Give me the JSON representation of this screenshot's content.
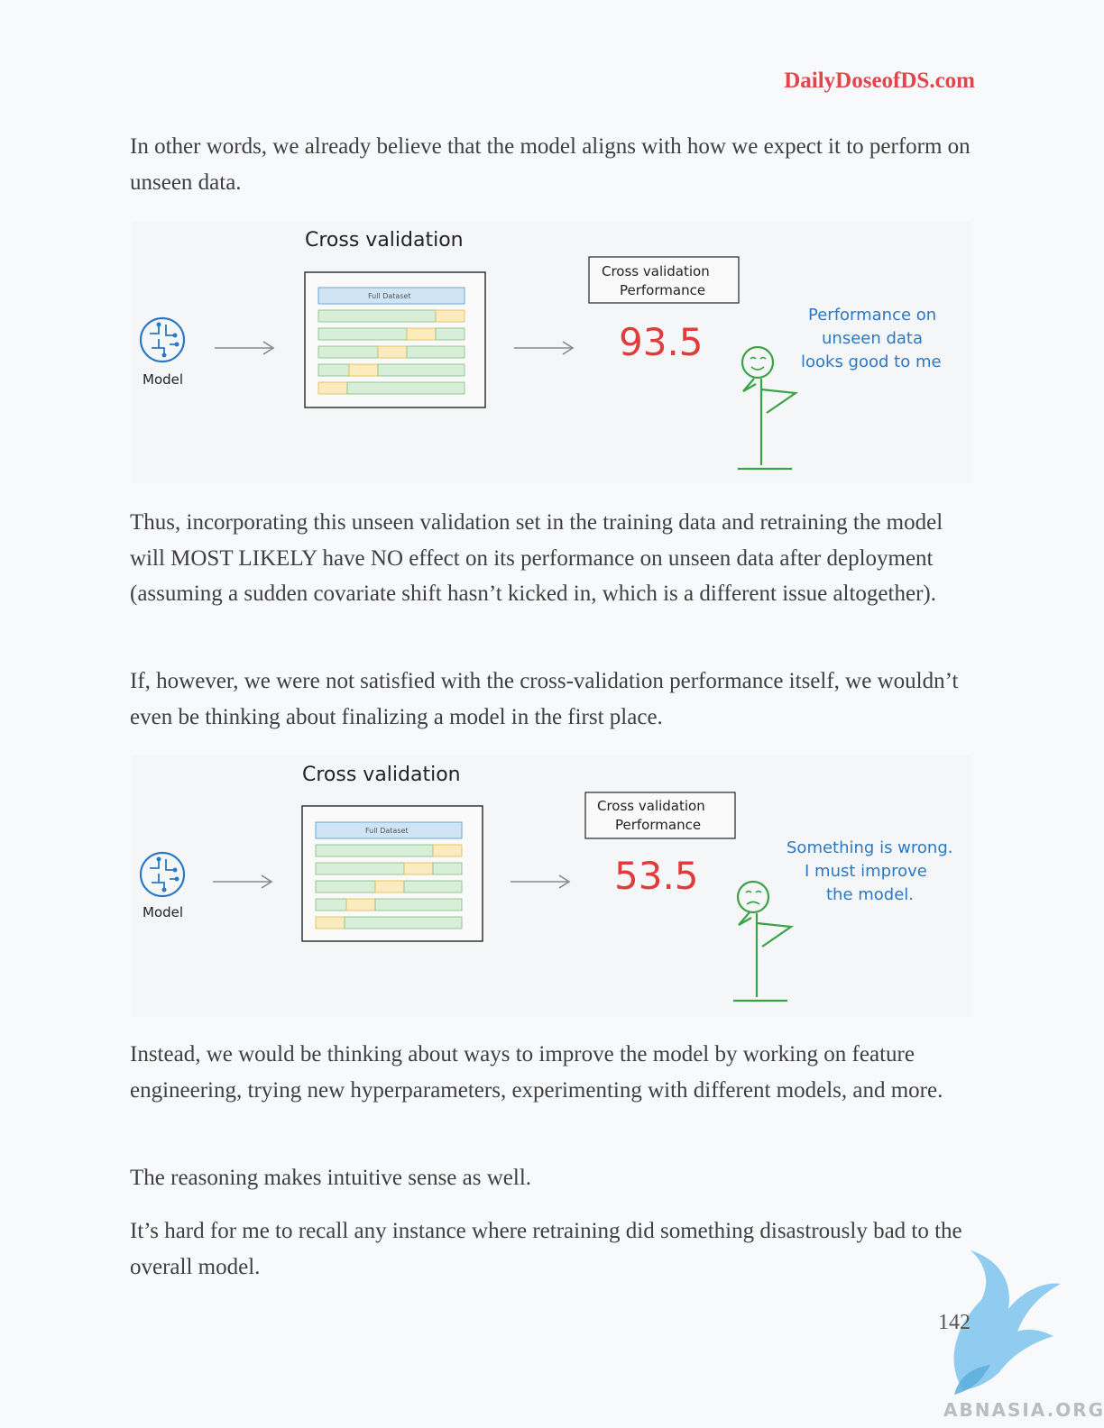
{
  "header": {
    "site": "DailyDoseofDS.com"
  },
  "paragraphs": {
    "p1": "In other words, we already believe that the model aligns with how we expect it to perform on unseen data.",
    "p2": "Thus, incorporating this unseen validation set in the training data and retraining the model will MOST LIKELY have NO effect on its performance on unseen data after deployment (assuming a sudden covariate shift hasn’t kicked in, which is a different issue altogether).",
    "p3": "If, however, we were not satisfied with the cross-validation performance itself, we wouldn’t even be thinking about finalizing a model in the first place.",
    "p4": "Instead, we would be thinking about ways to improve the model by working on feature engineering, trying new hyperparameters, experimenting with different models, and more.",
    "p5": "The reasoning makes intuitive sense as well.",
    "p6": "It’s hard for me to recall any instance where retraining did something disastrously bad to the overall model."
  },
  "figure1": {
    "title": "Cross validation",
    "model_label": "Model",
    "dataset_label": "Full Dataset",
    "perf_box_line1": "Cross validation",
    "perf_box_line2": "Performance",
    "score": "93.5",
    "comment_line1": "Performance on",
    "comment_line2": "unseen data",
    "comment_line3": "looks good to me"
  },
  "figure2": {
    "title": "Cross validation",
    "model_label": "Model",
    "dataset_label": "Full Dataset",
    "perf_box_line1": "Cross validation",
    "perf_box_line2": "Performance",
    "score": "53.5",
    "comment_line1": "Something is wrong.",
    "comment_line2": "I must improve",
    "comment_line3": "the model."
  },
  "footer": {
    "page_number": "142",
    "watermark": "ABNASIA.ORG"
  },
  "colors": {
    "brand": "#e0474c",
    "score": "#e23b3b",
    "comment": "#2b78c4",
    "stick_figure": "#3aa345",
    "train_fold": "#d8eed8",
    "val_fold": "#fbecc0",
    "dataset_header": "#cfe4f4"
  }
}
